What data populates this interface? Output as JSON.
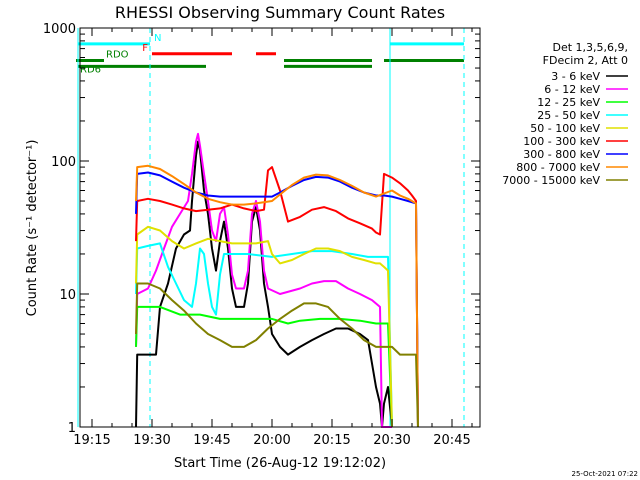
{
  "chart_data": {
    "type": "line",
    "title": "RHESSI Observing Summary Count Rates",
    "xlabel": "Start Time (26-Aug-12 19:12:02)",
    "ylabel": "Count Rate (s⁻¹ detector⁻¹)",
    "y_scale": "log",
    "ylim": [
      1,
      1000
    ],
    "xlim_minutes": [
      0,
      100
    ],
    "x_ticks": [
      "19:15",
      "19:30",
      "19:45",
      "20:00",
      "20:15",
      "20:30",
      "20:45"
    ],
    "y_ticks": [
      "1",
      "10",
      "100",
      "1000"
    ],
    "legend_header": [
      "Det 1,3,5,6,9,",
      "FDecim 2, Att 0"
    ],
    "legend_position": "right",
    "series": [
      {
        "name": "3 - 6 keV",
        "color": "#000000",
        "points": [
          [
            14,
            1
          ],
          [
            14.3,
            3.5
          ],
          [
            17,
            3.5
          ],
          [
            19,
            3.5
          ],
          [
            20,
            8
          ],
          [
            22,
            12
          ],
          [
            24,
            22
          ],
          [
            26,
            28
          ],
          [
            27.5,
            30
          ],
          [
            28,
            50
          ],
          [
            29,
            110
          ],
          [
            29.5,
            140
          ],
          [
            30,
            120
          ],
          [
            31,
            60
          ],
          [
            32,
            40
          ],
          [
            33,
            22
          ],
          [
            34,
            15
          ],
          [
            35,
            25
          ],
          [
            36,
            35
          ],
          [
            37,
            22
          ],
          [
            38,
            11
          ],
          [
            39,
            8
          ],
          [
            40,
            8
          ],
          [
            41,
            8
          ],
          [
            42,
            12
          ],
          [
            43,
            35
          ],
          [
            44,
            45
          ],
          [
            45,
            30
          ],
          [
            46,
            12
          ],
          [
            47,
            8
          ],
          [
            48,
            5
          ],
          [
            50,
            4
          ],
          [
            52,
            3.5
          ],
          [
            55,
            4
          ],
          [
            58,
            4.5
          ],
          [
            61,
            5
          ],
          [
            64,
            5.5
          ],
          [
            67,
            5.5
          ],
          [
            70,
            5
          ],
          [
            72,
            4.5
          ],
          [
            73,
            3
          ],
          [
            74,
            2
          ],
          [
            75,
            1.5
          ],
          [
            75.5,
            1
          ],
          [
            76,
            1.5
          ],
          [
            77,
            2
          ],
          [
            78,
            1
          ]
        ]
      },
      {
        "name": "6 - 12 keV",
        "color": "#ff00ff",
        "points": [
          [
            14,
            4
          ],
          [
            14.3,
            10
          ],
          [
            17,
            11
          ],
          [
            19,
            15
          ],
          [
            21,
            22
          ],
          [
            23,
            32
          ],
          [
            25,
            40
          ],
          [
            27,
            50
          ],
          [
            28,
            80
          ],
          [
            29,
            140
          ],
          [
            29.5,
            160
          ],
          [
            30,
            130
          ],
          [
            31,
            80
          ],
          [
            32,
            50
          ],
          [
            33,
            30
          ],
          [
            34,
            25
          ],
          [
            35,
            40
          ],
          [
            36,
            45
          ],
          [
            37,
            28
          ],
          [
            38,
            14
          ],
          [
            39,
            11
          ],
          [
            41,
            11
          ],
          [
            42,
            15
          ],
          [
            43,
            40
          ],
          [
            44,
            50
          ],
          [
            45,
            35
          ],
          [
            46,
            15
          ],
          [
            47,
            11
          ],
          [
            50,
            10
          ],
          [
            55,
            11
          ],
          [
            58,
            12
          ],
          [
            61,
            12.5
          ],
          [
            64,
            12.5
          ],
          [
            67,
            11
          ],
          [
            70,
            10
          ],
          [
            73,
            9
          ],
          [
            75,
            8
          ],
          [
            75.5,
            1
          ],
          [
            78,
            1
          ]
        ]
      },
      {
        "name": "12 - 25 keV",
        "color": "#00ff00",
        "points": [
          [
            14,
            4
          ],
          [
            14.3,
            8
          ],
          [
            20,
            8
          ],
          [
            25,
            7
          ],
          [
            30,
            7
          ],
          [
            35,
            6.5
          ],
          [
            40,
            6.5
          ],
          [
            45,
            6.5
          ],
          [
            48,
            6.5
          ],
          [
            52,
            6
          ],
          [
            55,
            6.3
          ],
          [
            60,
            6.5
          ],
          [
            65,
            6.5
          ],
          [
            70,
            6.3
          ],
          [
            74,
            6
          ],
          [
            76,
            6
          ],
          [
            77,
            6
          ],
          [
            78,
            1
          ]
        ]
      },
      {
        "name": "25 - 50 keV",
        "color": "#00ffff",
        "points": [
          [
            14,
            10
          ],
          [
            14.3,
            22
          ],
          [
            17,
            23
          ],
          [
            20,
            24
          ],
          [
            22,
            16
          ],
          [
            24,
            12
          ],
          [
            26,
            9
          ],
          [
            28,
            8
          ],
          [
            29,
            12
          ],
          [
            30,
            22
          ],
          [
            31,
            20
          ],
          [
            32,
            12
          ],
          [
            33,
            8
          ],
          [
            34,
            7
          ],
          [
            35,
            14
          ],
          [
            36,
            20
          ],
          [
            38,
            20
          ],
          [
            42,
            20
          ],
          [
            48,
            19
          ],
          [
            53,
            20
          ],
          [
            58,
            21
          ],
          [
            63,
            21
          ],
          [
            68,
            20
          ],
          [
            72,
            19
          ],
          [
            76,
            19
          ],
          [
            77,
            19
          ],
          [
            78,
            1
          ]
        ]
      },
      {
        "name": "50 - 100 keV",
        "color": "#e0e000",
        "points": [
          [
            14,
            12
          ],
          [
            14.3,
            28
          ],
          [
            17,
            32
          ],
          [
            20,
            30
          ],
          [
            23,
            25
          ],
          [
            26,
            22
          ],
          [
            29,
            24
          ],
          [
            32,
            26
          ],
          [
            35,
            25
          ],
          [
            38,
            24
          ],
          [
            41,
            24
          ],
          [
            44,
            24
          ],
          [
            47,
            25
          ],
          [
            48,
            20
          ],
          [
            50,
            17
          ],
          [
            53,
            18
          ],
          [
            56,
            20
          ],
          [
            59,
            22
          ],
          [
            62,
            22
          ],
          [
            65,
            21
          ],
          [
            68,
            19
          ],
          [
            71,
            18
          ],
          [
            74,
            17
          ],
          [
            75,
            17
          ],
          [
            76,
            16
          ],
          [
            77,
            15
          ],
          [
            78,
            1
          ]
        ]
      },
      {
        "name": "100 - 300 keV",
        "color": "#ff0000",
        "points": [
          [
            14,
            25
          ],
          [
            14.3,
            50
          ],
          [
            17,
            52
          ],
          [
            20,
            50
          ],
          [
            23,
            47
          ],
          [
            26,
            44
          ],
          [
            29,
            42
          ],
          [
            32,
            43
          ],
          [
            35,
            44
          ],
          [
            38,
            47
          ],
          [
            41,
            44
          ],
          [
            44,
            42
          ],
          [
            46,
            43
          ],
          [
            47,
            85
          ],
          [
            48,
            90
          ],
          [
            50,
            60
          ],
          [
            52,
            35
          ],
          [
            55,
            38
          ],
          [
            58,
            43
          ],
          [
            61,
            45
          ],
          [
            64,
            42
          ],
          [
            67,
            37
          ],
          [
            70,
            34
          ],
          [
            73,
            31
          ],
          [
            74,
            29
          ],
          [
            75,
            28
          ],
          [
            76,
            80
          ],
          [
            78,
            75
          ],
          [
            80,
            68
          ],
          [
            82,
            60
          ],
          [
            83,
            55
          ],
          [
            84,
            50
          ],
          [
            84.5,
            1
          ]
        ]
      },
      {
        "name": "300 - 800 keV",
        "color": "#0000ff",
        "points": [
          [
            14,
            40
          ],
          [
            14.3,
            80
          ],
          [
            17,
            82
          ],
          [
            20,
            78
          ],
          [
            23,
            70
          ],
          [
            26,
            63
          ],
          [
            29,
            58
          ],
          [
            32,
            55
          ],
          [
            35,
            54
          ],
          [
            38,
            54
          ],
          [
            41,
            54
          ],
          [
            44,
            54
          ],
          [
            48,
            54
          ],
          [
            50,
            58
          ],
          [
            53,
            65
          ],
          [
            56,
            72
          ],
          [
            59,
            76
          ],
          [
            62,
            75
          ],
          [
            65,
            70
          ],
          [
            68,
            63
          ],
          [
            71,
            58
          ],
          [
            74,
            55
          ],
          [
            76,
            55
          ],
          [
            78,
            54
          ],
          [
            80,
            52
          ],
          [
            82,
            50
          ],
          [
            84,
            48
          ],
          [
            84.5,
            1
          ]
        ]
      },
      {
        "name": "800 - 7000 keV",
        "color": "#ff8800",
        "points": [
          [
            14,
            50
          ],
          [
            14.3,
            90
          ],
          [
            17,
            92
          ],
          [
            20,
            87
          ],
          [
            23,
            77
          ],
          [
            26,
            67
          ],
          [
            29,
            58
          ],
          [
            32,
            52
          ],
          [
            35,
            49
          ],
          [
            38,
            47
          ],
          [
            41,
            47
          ],
          [
            44,
            48
          ],
          [
            48,
            50
          ],
          [
            50,
            56
          ],
          [
            53,
            66
          ],
          [
            56,
            75
          ],
          [
            59,
            79
          ],
          [
            62,
            78
          ],
          [
            65,
            72
          ],
          [
            68,
            65
          ],
          [
            71,
            58
          ],
          [
            74,
            54
          ],
          [
            76,
            57
          ],
          [
            78,
            60
          ],
          [
            80,
            55
          ],
          [
            82,
            52
          ],
          [
            84,
            48
          ],
          [
            84.5,
            1
          ]
        ]
      },
      {
        "name": "7000 - 15000 keV",
        "color": "#808000",
        "points": [
          [
            14,
            5
          ],
          [
            14.3,
            12
          ],
          [
            17,
            12
          ],
          [
            20,
            11
          ],
          [
            23,
            9
          ],
          [
            26,
            7.5
          ],
          [
            29,
            6
          ],
          [
            32,
            5
          ],
          [
            35,
            4.5
          ],
          [
            38,
            4
          ],
          [
            41,
            4
          ],
          [
            44,
            4.5
          ],
          [
            47,
            5.5
          ],
          [
            50,
            6.5
          ],
          [
            53,
            7.5
          ],
          [
            56,
            8.5
          ],
          [
            59,
            8.5
          ],
          [
            62,
            8
          ],
          [
            65,
            6.5
          ],
          [
            68,
            5.5
          ],
          [
            71,
            4.5
          ],
          [
            74,
            4
          ],
          [
            76,
            4
          ],
          [
            78,
            4
          ],
          [
            80,
            3.5
          ],
          [
            82,
            3.5
          ],
          [
            84,
            3.5
          ],
          [
            84.5,
            1
          ]
        ]
      }
    ],
    "overlays": [
      {
        "label": "N",
        "color": "#00ffff",
        "level": 760,
        "spans": [
          [
            -0.5,
            17.5
          ],
          [
            77.5,
            96
          ]
        ]
      },
      {
        "label": "F",
        "color": "#ff0000",
        "level": 640,
        "spans": [
          [
            18,
            38
          ],
          [
            44,
            49
          ]
        ]
      },
      {
        "label": "RDO",
        "color": "#008000",
        "level": 570,
        "spans": [
          [
            -1,
            6
          ],
          [
            51,
            73
          ],
          [
            76,
            96
          ]
        ]
      },
      {
        "label": "RD6",
        "color": "#008000",
        "level": 515,
        "spans": [
          [
            -0.5,
            31.5
          ],
          [
            51,
            73
          ]
        ]
      }
    ],
    "vertical_markers": [
      {
        "x": -0.5,
        "color": "#00ffff",
        "style": "solid"
      },
      {
        "x": 17.5,
        "color": "#00ffff",
        "style": "dashed"
      },
      {
        "x": 77.5,
        "color": "#00ffff",
        "style": "solid"
      },
      {
        "x": 96,
        "color": "#00ffff",
        "style": "dashed"
      }
    ]
  },
  "timestamp": "25-Oct-2021 07:22",
  "colors": {
    "background": "#ffffff",
    "axes": "#000000"
  }
}
